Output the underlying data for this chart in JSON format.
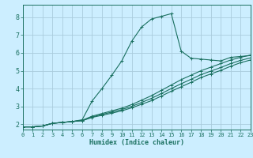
{
  "xlabel": "Humidex (Indice chaleur)",
  "background_color": "#cceeff",
  "grid_color": "#aaccdd",
  "line_color": "#1a7060",
  "xlim": [
    0,
    23
  ],
  "ylim": [
    1.7,
    8.7
  ],
  "yticks": [
    2,
    3,
    4,
    5,
    6,
    7,
    8
  ],
  "xticks": [
    0,
    1,
    2,
    3,
    4,
    5,
    6,
    7,
    8,
    9,
    10,
    11,
    12,
    13,
    14,
    15,
    16,
    17,
    18,
    19,
    20,
    21,
    22,
    23
  ],
  "series": [
    {
      "x": [
        0,
        1,
        2,
        3,
        4,
        5,
        6,
        7,
        8,
        9,
        10,
        11,
        12,
        13,
        14,
        15,
        16,
        17,
        18,
        19,
        20,
        21,
        22,
        23
      ],
      "y": [
        1.85,
        1.85,
        1.9,
        2.05,
        2.1,
        2.15,
        2.25,
        3.3,
        4.0,
        4.75,
        5.55,
        6.65,
        7.45,
        7.9,
        8.05,
        8.2,
        6.1,
        5.7,
        5.65,
        5.6,
        5.55,
        5.75,
        5.8,
        5.85
      ]
    },
    {
      "x": [
        0,
        1,
        2,
        3,
        4,
        5,
        6,
        7,
        8,
        9,
        10,
        11,
        12,
        13,
        14,
        15,
        16,
        17,
        18,
        19,
        20,
        21,
        22,
        23
      ],
      "y": [
        1.85,
        1.85,
        1.9,
        2.05,
        2.1,
        2.15,
        2.22,
        2.45,
        2.6,
        2.75,
        2.9,
        3.1,
        3.35,
        3.6,
        3.9,
        4.2,
        4.5,
        4.75,
        5.0,
        5.2,
        5.4,
        5.6,
        5.75,
        5.88
      ]
    },
    {
      "x": [
        0,
        1,
        2,
        3,
        4,
        5,
        6,
        7,
        8,
        9,
        10,
        11,
        12,
        13,
        14,
        15,
        16,
        17,
        18,
        19,
        20,
        21,
        22,
        23
      ],
      "y": [
        1.85,
        1.85,
        1.9,
        2.05,
        2.1,
        2.15,
        2.2,
        2.4,
        2.55,
        2.68,
        2.82,
        3.0,
        3.22,
        3.45,
        3.72,
        4.0,
        4.27,
        4.52,
        4.78,
        4.98,
        5.18,
        5.4,
        5.58,
        5.72
      ]
    },
    {
      "x": [
        0,
        1,
        2,
        3,
        4,
        5,
        6,
        7,
        8,
        9,
        10,
        11,
        12,
        13,
        14,
        15,
        16,
        17,
        18,
        19,
        20,
        21,
        22,
        23
      ],
      "y": [
        1.85,
        1.85,
        1.9,
        2.05,
        2.1,
        2.15,
        2.2,
        2.38,
        2.5,
        2.62,
        2.75,
        2.92,
        3.12,
        3.32,
        3.58,
        3.85,
        4.1,
        4.35,
        4.62,
        4.82,
        5.02,
        5.25,
        5.45,
        5.6
      ]
    }
  ]
}
